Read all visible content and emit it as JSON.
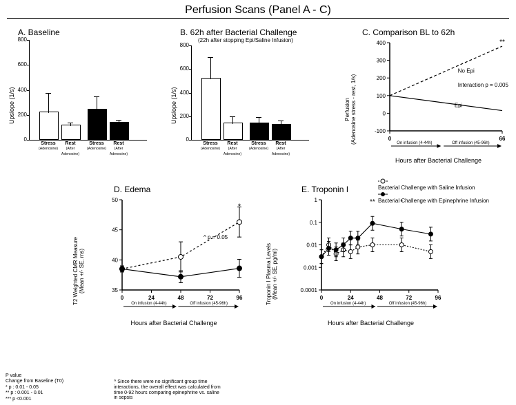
{
  "title": "Perfusion Scans (Panel A - C)",
  "colors": {
    "white": "#ffffff",
    "black": "#000000"
  },
  "panelA": {
    "title": "A. Baseline",
    "ylabel": "Upslope (1/s)",
    "ymax": 800,
    "ytick": 200,
    "categories": [
      "Stress",
      "Rest",
      "Stress",
      "Rest"
    ],
    "catsub": [
      "(Adenosine)",
      "(After Adenosine)",
      "(Adenosine)",
      "(After Adenosine)"
    ],
    "values": [
      215,
      110,
      235,
      135
    ],
    "errors": [
      155,
      25,
      105,
      20
    ],
    "fills": [
      "#ffffff",
      "#ffffff",
      "#000000",
      "#000000"
    ]
  },
  "panelB": {
    "title": "B. 62h after Bacterial Challenge",
    "subtitle": "(22h after stopping Epi/Saline Infusion)",
    "ylabel": "Upslope (1/s)",
    "ymax": 800,
    "ytick": 200,
    "categories": [
      "Stress",
      "Rest",
      "Stress",
      "Rest"
    ],
    "catsub": [
      "(Adenosine)",
      "(After Adenosine)",
      "(Adenosine)",
      "(After Adenosine)"
    ],
    "values": [
      515,
      135,
      135,
      120
    ],
    "errors": [
      178,
      60,
      50,
      40
    ],
    "fills": [
      "#ffffff",
      "#ffffff",
      "#000000",
      "#000000"
    ]
  },
  "panelC": {
    "title": "C. Comparison BL to 62h",
    "ylabel": "Perfusion\n(Adenosine stress - rest, 1/s)",
    "ymin": -100,
    "ymax": 400,
    "ytick": 100,
    "xmin": 0,
    "xmax": 66,
    "xticks": [
      0,
      66
    ],
    "xlabel": "Hours after Bacterial Challenge",
    "noEpi": [
      [
        0,
        100
      ],
      [
        66,
        380
      ]
    ],
    "epi": [
      [
        0,
        100
      ],
      [
        66,
        15
      ]
    ],
    "interaction": "Interaction p = 0.005",
    "star": "**",
    "inf1": "On infusion (4-44h)",
    "inf2": "Off infusion (45-96h)"
  },
  "panelD": {
    "title": "D. Edema",
    "ylabel": "T2 Weighted CMR Measure\n(Mean +/- SE, ms)",
    "ymin": 35,
    "ymax": 50,
    "yticks": [
      35,
      40,
      45,
      50
    ],
    "xmin": 0,
    "xmax": 96,
    "xticks": [
      0,
      24,
      48,
      72,
      96
    ],
    "xlabel": "Hours after Bacterial Challenge",
    "saline": {
      "x": [
        0,
        48,
        96
      ],
      "y": [
        38.5,
        40.5,
        46.3
      ],
      "err": [
        0.5,
        2.5,
        2.5
      ]
    },
    "epi": {
      "x": [
        0,
        48,
        96
      ],
      "y": [
        38.5,
        37.2,
        38.6
      ],
      "err": [
        0.5,
        1,
        1.5
      ]
    },
    "star": "*",
    "pnote": "^ p = 0.05",
    "inf1": "On infusion (4-44h)",
    "inf2": "Off infusion (45-96h)"
  },
  "panelE": {
    "title": "E. Troponin I",
    "ylabel": "Troponin I Plasma Levels\n(Mean +/- SE, pg/ml)",
    "ylog": [
      0.0001,
      0.001,
      0.01,
      0.1,
      1
    ],
    "xmin": 0,
    "xmax": 96,
    "xticks": [
      0,
      24,
      48,
      72,
      96
    ],
    "xlabel": "Hours after Bacterial Challenge",
    "saline": {
      "x": [
        0,
        6,
        12,
        18,
        24,
        30,
        42,
        66,
        90
      ],
      "y": [
        0.003,
        0.01,
        0.004,
        0.006,
        0.005,
        0.008,
        0.01,
        0.01,
        0.005
      ]
    },
    "epi": {
      "x": [
        0,
        6,
        12,
        18,
        24,
        30,
        42,
        66,
        90
      ],
      "y": [
        0.003,
        0.007,
        0.006,
        0.01,
        0.02,
        0.02,
        0.09,
        0.05,
        0.03
      ]
    },
    "stars": [
      {
        "x": 42,
        "label": "**"
      },
      {
        "x": 66,
        "label": "*"
      }
    ],
    "inf1": "On infusion (4-44h)",
    "inf2": "Off infusion (45-96h)"
  },
  "legend": {
    "saline": "Bacterial Challenge with Saline Infusion",
    "epi": "Bacterial Challenge with Epinephrine Infusion"
  },
  "footnotes": {
    "l1": "P value",
    "l2": "Change from Baseline (T0)",
    "l3": "* p : 0.01 - 0.05",
    "l4": "** p : 0.001 - 0.01",
    "l5": "*** p <0.001"
  },
  "note": "^ Since there were no significant group time interactions, the overall effect was calculated from time 0-92 hours comparing epinephrine  vs. saline in sepsis"
}
